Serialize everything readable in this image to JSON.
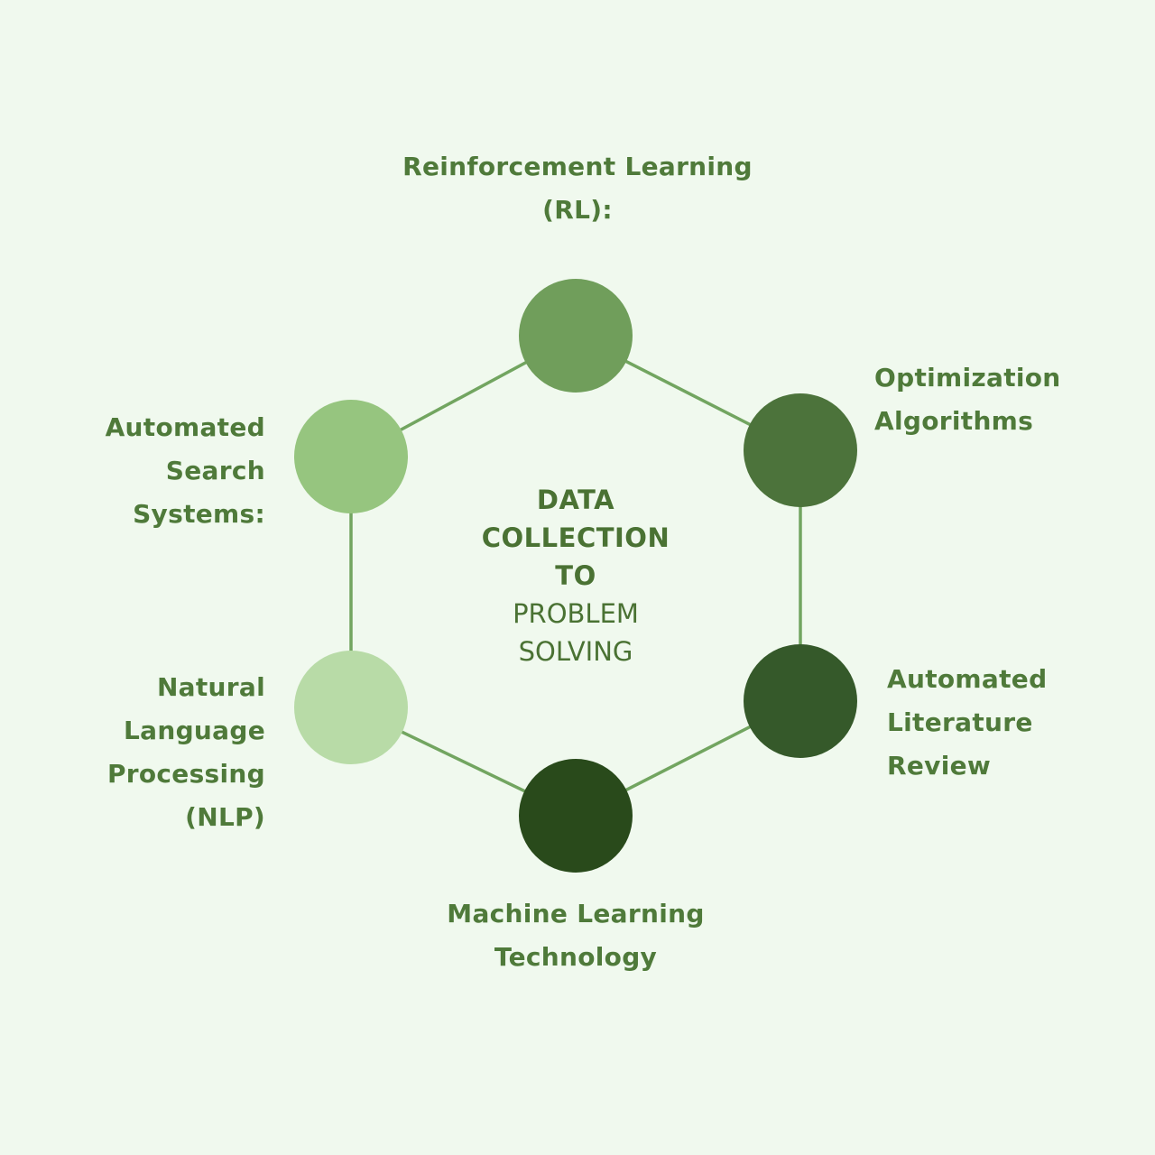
{
  "center": {
    "line1": "DATA",
    "line2": "COLLECTION",
    "line3": "TO",
    "line4": "PROBLEM",
    "line5": "SOLVING"
  },
  "nodes": [
    {
      "id": "reinforcement-learning",
      "lines": [
        "Reinforcement Learning",
        "(RL):"
      ],
      "color": "#709e5b"
    },
    {
      "id": "optimization-algorithms",
      "lines": [
        "Optimization",
        "Algorithms"
      ],
      "color": "#4c733b"
    },
    {
      "id": "automated-literature-review",
      "lines": [
        "Automated",
        "Literature",
        "Review"
      ],
      "color": "#35592a"
    },
    {
      "id": "machine-learning-technology",
      "lines": [
        "Machine Learning",
        "Technology"
      ],
      "color": "#294a1b"
    },
    {
      "id": "natural-language-processing",
      "lines": [
        "Natural",
        "Language",
        "Processing",
        "(NLP)"
      ],
      "color": "#b8dba7"
    },
    {
      "id": "automated-search-systems",
      "lines": [
        "Automated",
        "Search",
        "Systems:"
      ],
      "color": "#96c57f"
    }
  ],
  "colors": {
    "background": "#f0f9ee",
    "edge": "#72a560",
    "label_text": "#4f7a3a"
  }
}
